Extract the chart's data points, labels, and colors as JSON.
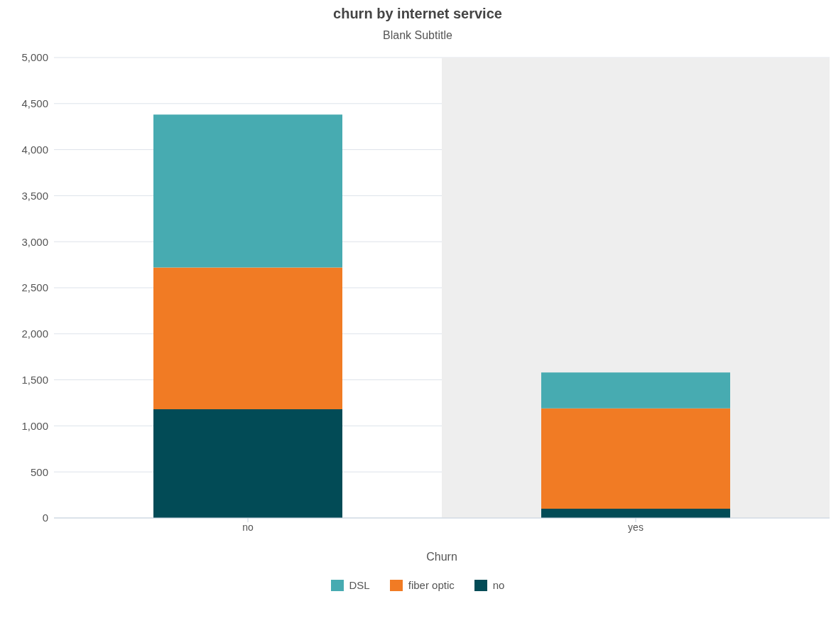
{
  "chart_data": {
    "type": "bar",
    "title": "churn by internet service",
    "subtitle": "Blank Subtitle",
    "xlabel": "Churn",
    "categories": [
      "no",
      "yes"
    ],
    "series": [
      {
        "name": "no",
        "color": "#024b56",
        "values": [
          1180,
          100
        ]
      },
      {
        "name": "fiber optic",
        "color": "#f17b24",
        "values": [
          1540,
          1090
        ]
      },
      {
        "name": "DSL",
        "color": "#47abb1",
        "values": [
          1660,
          390
        ]
      }
    ],
    "stacked": true,
    "ylim": [
      0,
      5000
    ],
    "yticks": [
      0,
      500,
      {
        "value": 1000,
        "label": "1,000"
      },
      {
        "value": 1500,
        "label": "1,500"
      },
      {
        "value": 2000,
        "label": "2,000"
      },
      {
        "value": 2500,
        "label": "2,500"
      },
      {
        "value": 3000,
        "label": "3,000"
      },
      {
        "value": 3500,
        "label": "3,500"
      },
      {
        "value": 4000,
        "label": "4,000"
      },
      {
        "value": 4500,
        "label": "4,500"
      },
      {
        "value": 5000,
        "label": "5,000"
      }
    ],
    "grid": "y",
    "legend": "bottom",
    "bands": [
      {
        "axis": "x",
        "from": "yes",
        "to": "yes",
        "color": "#eeeeee"
      }
    ]
  }
}
